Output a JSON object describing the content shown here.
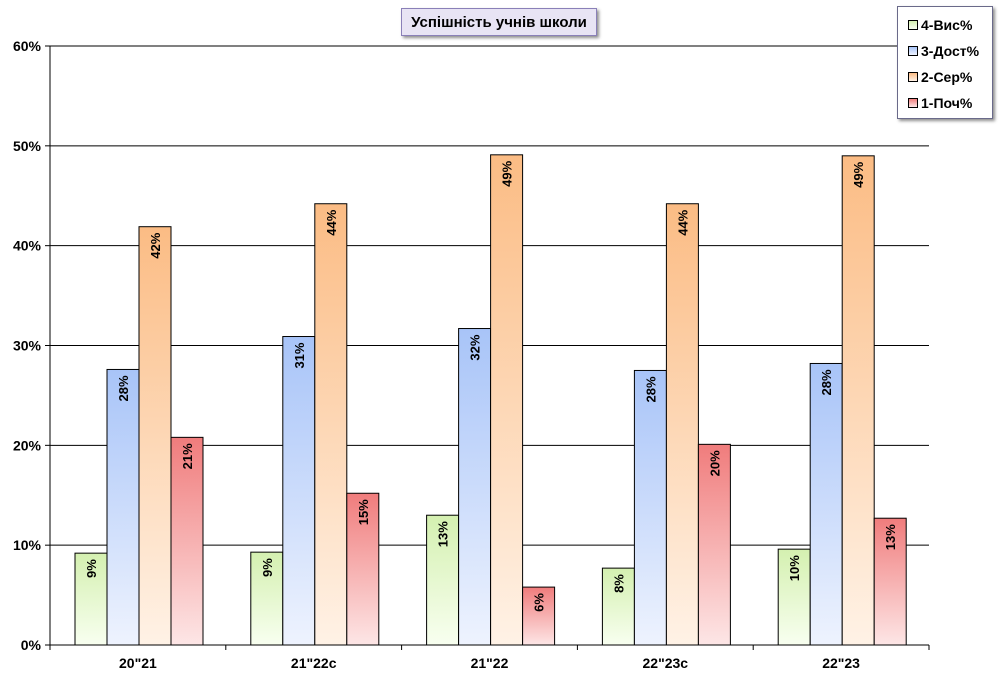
{
  "chart_data": {
    "type": "bar",
    "title": "Успішність учнів школи",
    "categories": [
      "20\"21",
      "21\"22с",
      "21\"22",
      "22\"23с",
      "22\"23"
    ],
    "series": [
      {
        "name": "4-Вис%",
        "values": [
          9.2,
          9.3,
          13.0,
          7.7,
          9.6
        ],
        "labels": [
          "9%",
          "9%",
          "13%",
          "8%",
          "10%"
        ],
        "color_top": "#d4f0b0",
        "color_bottom": "#f8fff0"
      },
      {
        "name": "3-Дост%",
        "values": [
          27.6,
          30.9,
          31.7,
          27.5,
          28.2
        ],
        "labels": [
          "28%",
          "31%",
          "32%",
          "28%",
          "28%"
        ],
        "color_top": "#a8c4f8",
        "color_bottom": "#eef3fe"
      },
      {
        "name": "2-Сер%",
        "values": [
          41.9,
          44.2,
          49.1,
          44.2,
          49.0
        ],
        "labels": [
          "42%",
          "44%",
          "49%",
          "44%",
          "49%"
        ],
        "color_top": "#fbbc84",
        "color_bottom": "#fff2e6"
      },
      {
        "name": "1-Поч%",
        "values": [
          20.8,
          15.2,
          5.8,
          20.1,
          12.7
        ],
        "labels": [
          "21%",
          "15%",
          "6%",
          "20%",
          "13%"
        ],
        "color_top": "#f07c7c",
        "color_bottom": "#fde6e6"
      }
    ],
    "y_ticks": [
      "0%",
      "10%",
      "20%",
      "30%",
      "40%",
      "50%",
      "60%"
    ],
    "ylim": [
      0,
      60
    ],
    "grid": true,
    "legend_position": "top-right"
  }
}
